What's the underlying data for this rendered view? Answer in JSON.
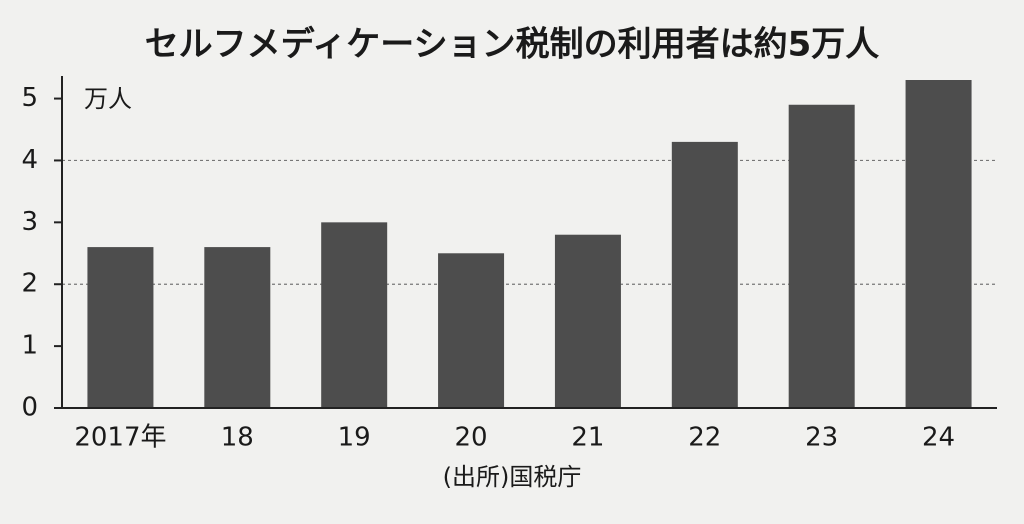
{
  "chart_data": {
    "type": "bar",
    "title": "セルフメディケーション税制の利用者は約5万人",
    "y_unit": "万人",
    "source": "(出所)国税庁",
    "categories": [
      "2017年",
      "18",
      "19",
      "20",
      "21",
      "22",
      "23",
      "24"
    ],
    "values": [
      2.6,
      2.6,
      3.0,
      2.5,
      2.8,
      4.3,
      4.9,
      5.3
    ],
    "color": "#4d4d4d",
    "ylim": [
      0,
      5.3
    ],
    "yticks": [
      0,
      1,
      2,
      3,
      4,
      5
    ],
    "gridlines": [
      2,
      4
    ]
  }
}
